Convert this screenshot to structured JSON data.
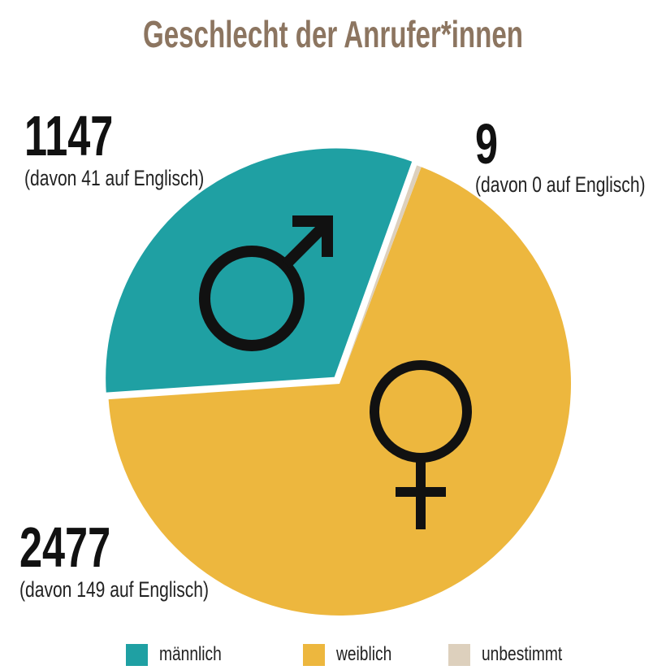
{
  "title": "Geschlecht der Anrufer*innen",
  "colors": {
    "maennlich": "#1fa0a3",
    "weiblich": "#edb73e",
    "unbestimmt": "#ddd0bd",
    "title": "#8c7560",
    "text": "#111111"
  },
  "labels": {
    "maennlich": {
      "value": "1147",
      "note": "(davon 41 auf Englisch)"
    },
    "unbestimmt": {
      "value": "9",
      "note": "(davon 0 auf Englisch)"
    },
    "weiblich": {
      "value": "2477",
      "note": "(davon 149 auf Englisch)"
    }
  },
  "icons": {
    "maennlich": "male-symbol",
    "weiblich": "female-symbol"
  },
  "legend": [
    {
      "label": "männlich",
      "color": "#1fa0a3"
    },
    {
      "label": "weiblich",
      "color": "#edb73e"
    },
    {
      "label": "unbestimmt",
      "color": "#ddd0bd"
    }
  ],
  "chart_data": {
    "type": "pie",
    "title": "Geschlecht der Anrufer*innen",
    "categories": [
      "männlich",
      "weiblich",
      "unbestimmt"
    ],
    "values": [
      1147,
      2477,
      9
    ],
    "english_subset": [
      41,
      149,
      0
    ],
    "annotations": [
      "(davon 41 auf Englisch)",
      "(davon 149 auf Englisch)",
      "(davon 0 auf Englisch)"
    ],
    "colors": [
      "#1fa0a3",
      "#edb73e",
      "#ddd0bd"
    ],
    "legend_position": "bottom",
    "exploded": [
      "männlich"
    ]
  }
}
